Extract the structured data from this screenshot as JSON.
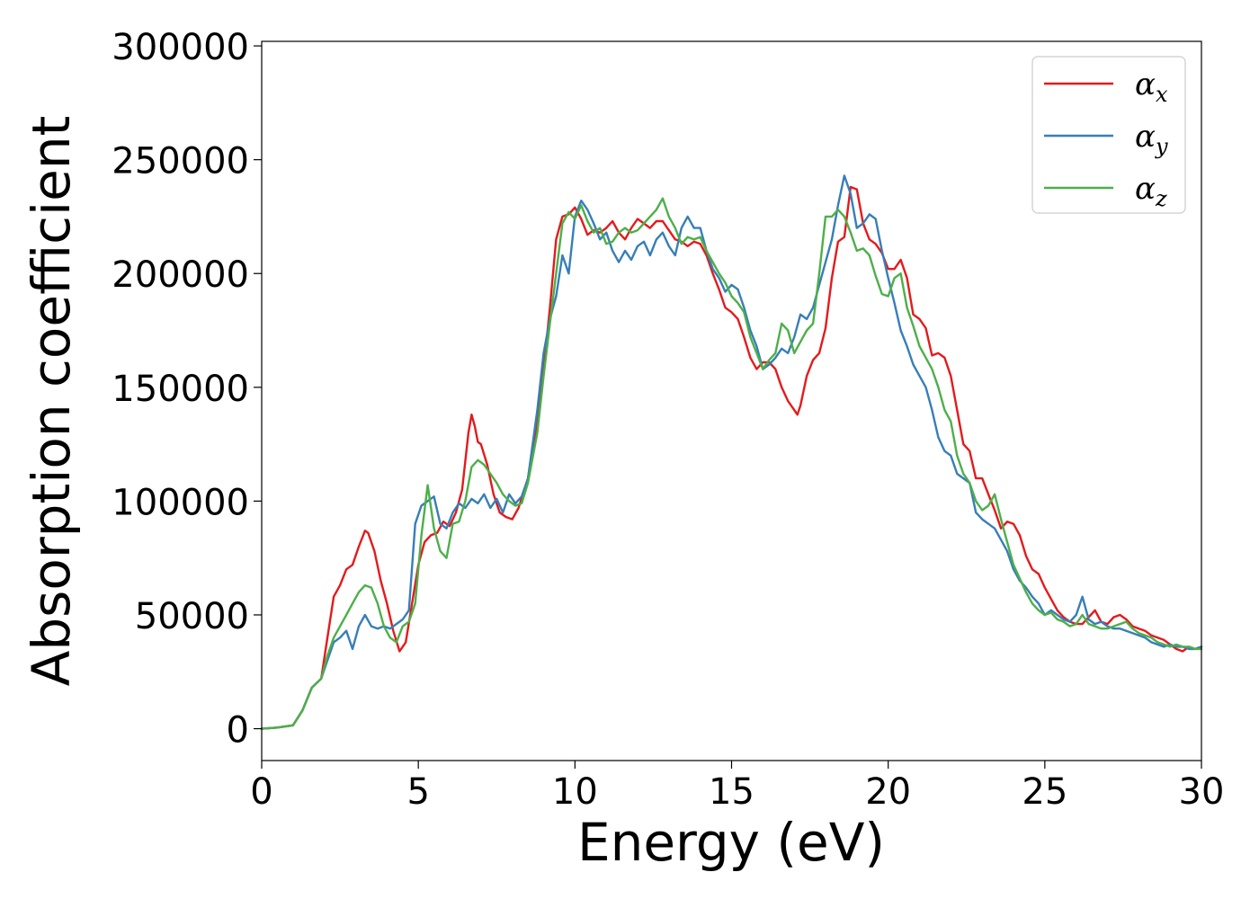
{
  "chart_data": {
    "type": "line",
    "xlabel": "Energy (eV)",
    "ylabel": "Absorption coefficient",
    "xlim": [
      0,
      30
    ],
    "ylim": [
      -14000,
      302000
    ],
    "xticks": [
      0,
      5,
      10,
      15,
      20,
      25,
      30
    ],
    "yticks": [
      0,
      50000,
      100000,
      150000,
      200000,
      250000,
      300000
    ],
    "grid": false,
    "legend_position": "top-right",
    "series": [
      {
        "name": "α",
        "subscript": "x",
        "color": "#e41a1c",
        "x": [
          0,
          0.5,
          1.0,
          1.3,
          1.6,
          1.9,
          2.1,
          2.3,
          2.5,
          2.7,
          2.9,
          3.1,
          3.3,
          3.4,
          3.6,
          3.8,
          4.0,
          4.2,
          4.4,
          4.6,
          4.8,
          5.0,
          5.2,
          5.4,
          5.6,
          5.8,
          6.0,
          6.2,
          6.4,
          6.6,
          6.7,
          6.8,
          6.9,
          7.0,
          7.2,
          7.4,
          7.6,
          7.8,
          8.0,
          8.2,
          8.5,
          8.8,
          9.0,
          9.2,
          9.4,
          9.6,
          9.8,
          10.0,
          10.2,
          10.4,
          10.6,
          10.8,
          11.0,
          11.2,
          11.4,
          11.6,
          11.8,
          12.0,
          12.2,
          12.4,
          12.6,
          12.8,
          13.0,
          13.2,
          13.4,
          13.6,
          13.8,
          14.0,
          14.2,
          14.4,
          14.6,
          14.8,
          15.0,
          15.2,
          15.4,
          15.6,
          15.8,
          16.0,
          16.2,
          16.4,
          16.6,
          16.8,
          17.0,
          17.1,
          17.2,
          17.4,
          17.6,
          17.8,
          18.0,
          18.2,
          18.4,
          18.6,
          18.8,
          19.0,
          19.2,
          19.4,
          19.6,
          19.8,
          20.0,
          20.2,
          20.4,
          20.6,
          20.8,
          21.0,
          21.2,
          21.4,
          21.6,
          21.8,
          22.0,
          22.2,
          22.4,
          22.6,
          22.8,
          23.0,
          23.2,
          23.4,
          23.6,
          23.8,
          24.0,
          24.2,
          24.4,
          24.6,
          24.8,
          25.0,
          25.2,
          25.4,
          25.6,
          25.8,
          26.0,
          26.2,
          26.4,
          26.6,
          26.8,
          27.0,
          27.2,
          27.4,
          27.6,
          27.8,
          28.0,
          28.2,
          28.4,
          28.6,
          28.8,
          29.0,
          29.2,
          29.4,
          29.6,
          29.8,
          30.0
        ],
        "values": [
          0,
          500,
          1500,
          8000,
          18000,
          22000,
          40000,
          58000,
          63000,
          70000,
          72000,
          80000,
          87000,
          86000,
          78000,
          65000,
          55000,
          43000,
          34000,
          38000,
          55000,
          72000,
          82000,
          85000,
          86000,
          91000,
          89000,
          95000,
          105000,
          130000,
          138000,
          133000,
          126000,
          125000,
          116000,
          103000,
          95000,
          93000,
          92000,
          97000,
          110000,
          135000,
          158000,
          185000,
          215000,
          225000,
          226000,
          229000,
          224000,
          217000,
          219000,
          218000,
          220000,
          223000,
          218000,
          215000,
          220000,
          224000,
          222000,
          220000,
          223000,
          223000,
          219000,
          215000,
          214000,
          212000,
          214000,
          213000,
          208000,
          200000,
          193000,
          185000,
          183000,
          180000,
          172000,
          163000,
          158000,
          161000,
          161000,
          158000,
          150000,
          144000,
          140000,
          138000,
          142000,
          155000,
          162000,
          165000,
          176000,
          198000,
          214000,
          216000,
          238000,
          237000,
          222000,
          215000,
          213000,
          209000,
          202000,
          202000,
          206000,
          198000,
          182000,
          180000,
          176000,
          164000,
          165000,
          163000,
          155000,
          140000,
          125000,
          122000,
          110000,
          110000,
          103000,
          96000,
          88000,
          91000,
          90000,
          85000,
          76000,
          70000,
          68000,
          62000,
          57000,
          52000,
          49000,
          47000,
          46000,
          46000,
          49000,
          52000,
          47000,
          46000,
          49000,
          50000,
          48000,
          45000,
          44000,
          43000,
          41000,
          40000,
          39000,
          37000,
          35000,
          34000,
          36000,
          35000,
          36000
        ]
      },
      {
        "name": "α",
        "subscript": "y",
        "color": "#377eb8",
        "x": [
          0,
          0.5,
          1.0,
          1.3,
          1.6,
          1.9,
          2.1,
          2.3,
          2.5,
          2.7,
          2.9,
          3.1,
          3.3,
          3.5,
          3.7,
          3.9,
          4.1,
          4.3,
          4.5,
          4.7,
          4.9,
          5.1,
          5.3,
          5.5,
          5.7,
          5.9,
          6.1,
          6.3,
          6.5,
          6.7,
          6.9,
          7.1,
          7.3,
          7.5,
          7.7,
          7.9,
          8.1,
          8.3,
          8.5,
          8.8,
          9.0,
          9.2,
          9.4,
          9.6,
          9.8,
          10.0,
          10.2,
          10.4,
          10.6,
          10.8,
          11.0,
          11.2,
          11.4,
          11.6,
          11.8,
          12.0,
          12.2,
          12.4,
          12.6,
          12.8,
          13.0,
          13.2,
          13.4,
          13.6,
          13.8,
          14.0,
          14.2,
          14.4,
          14.6,
          14.8,
          15.0,
          15.2,
          15.4,
          15.6,
          15.8,
          16.0,
          16.2,
          16.4,
          16.6,
          16.8,
          17.0,
          17.2,
          17.4,
          17.6,
          17.8,
          18.0,
          18.2,
          18.4,
          18.6,
          18.8,
          19.0,
          19.2,
          19.4,
          19.6,
          19.8,
          20.0,
          20.2,
          20.4,
          20.6,
          20.8,
          21.0,
          21.2,
          21.4,
          21.6,
          21.8,
          22.0,
          22.2,
          22.4,
          22.6,
          22.8,
          23.0,
          23.2,
          23.4,
          23.6,
          23.8,
          24.0,
          24.2,
          24.4,
          24.6,
          24.8,
          25.0,
          25.2,
          25.4,
          25.6,
          25.8,
          26.0,
          26.2,
          26.4,
          26.6,
          26.8,
          27.0,
          27.2,
          27.4,
          27.6,
          27.8,
          28.0,
          28.2,
          28.4,
          28.6,
          28.8,
          29.0,
          29.2,
          29.4,
          29.6,
          29.8,
          30.0
        ],
        "values": [
          0,
          500,
          1500,
          8000,
          18000,
          22000,
          30000,
          38000,
          40000,
          43000,
          35000,
          45000,
          50000,
          45000,
          44000,
          45000,
          44000,
          46000,
          48000,
          52000,
          90000,
          98000,
          100000,
          102000,
          90000,
          88000,
          95000,
          99000,
          97000,
          101000,
          99000,
          103000,
          97000,
          101000,
          95000,
          103000,
          99000,
          102000,
          110000,
          140000,
          165000,
          180000,
          190000,
          208000,
          200000,
          225000,
          232000,
          228000,
          222000,
          215000,
          218000,
          210000,
          205000,
          210000,
          206000,
          212000,
          214000,
          208000,
          215000,
          218000,
          212000,
          208000,
          220000,
          225000,
          220000,
          220000,
          210000,
          202000,
          198000,
          192000,
          195000,
          193000,
          185000,
          175000,
          168000,
          158000,
          160000,
          163000,
          167000,
          165000,
          172000,
          182000,
          180000,
          185000,
          195000,
          205000,
          215000,
          230000,
          243000,
          235000,
          220000,
          222000,
          226000,
          224000,
          210000,
          198000,
          187000,
          175000,
          168000,
          160000,
          155000,
          150000,
          140000,
          128000,
          122000,
          120000,
          112000,
          110000,
          108000,
          95000,
          92000,
          90000,
          88000,
          83000,
          78000,
          70000,
          65000,
          62000,
          58000,
          55000,
          50000,
          52000,
          50000,
          48000,
          47000,
          50000,
          58000,
          48000,
          46000,
          47000,
          45000,
          44000,
          44000,
          43000,
          42000,
          41000,
          40000,
          38000,
          37000,
          36000,
          37000,
          36000,
          36000,
          35000,
          35000,
          36000
        ]
      },
      {
        "name": "α",
        "subscript": "z",
        "color": "#4daf4a",
        "x": [
          0,
          0.5,
          1.0,
          1.3,
          1.6,
          1.9,
          2.1,
          2.3,
          2.5,
          2.7,
          2.9,
          3.1,
          3.3,
          3.5,
          3.7,
          3.9,
          4.1,
          4.3,
          4.5,
          4.7,
          4.9,
          5.1,
          5.3,
          5.5,
          5.7,
          5.9,
          6.1,
          6.3,
          6.5,
          6.7,
          6.9,
          7.1,
          7.3,
          7.5,
          7.7,
          7.9,
          8.1,
          8.3,
          8.5,
          8.8,
          9.0,
          9.2,
          9.4,
          9.6,
          9.8,
          10.0,
          10.2,
          10.4,
          10.6,
          10.8,
          11.0,
          11.2,
          11.4,
          11.6,
          11.8,
          12.0,
          12.2,
          12.4,
          12.6,
          12.8,
          13.0,
          13.2,
          13.4,
          13.6,
          13.8,
          14.0,
          14.2,
          14.4,
          14.6,
          14.8,
          15.0,
          15.2,
          15.4,
          15.6,
          15.8,
          16.0,
          16.2,
          16.4,
          16.6,
          16.8,
          17.0,
          17.2,
          17.4,
          17.6,
          17.8,
          18.0,
          18.2,
          18.4,
          18.6,
          18.8,
          19.0,
          19.2,
          19.4,
          19.6,
          19.8,
          20.0,
          20.2,
          20.4,
          20.6,
          20.8,
          21.0,
          21.2,
          21.4,
          21.6,
          21.8,
          22.0,
          22.2,
          22.4,
          22.6,
          22.8,
          23.0,
          23.2,
          23.4,
          23.6,
          23.8,
          24.0,
          24.2,
          24.4,
          24.6,
          24.8,
          25.0,
          25.2,
          25.4,
          25.6,
          25.8,
          26.0,
          26.2,
          26.4,
          26.6,
          26.8,
          27.0,
          27.2,
          27.4,
          27.6,
          27.8,
          28.0,
          28.2,
          28.4,
          28.6,
          28.8,
          29.0,
          29.2,
          29.4,
          29.6,
          29.8,
          30.0
        ],
        "values": [
          0,
          500,
          1500,
          8000,
          18000,
          22000,
          32000,
          40000,
          45000,
          50000,
          55000,
          60000,
          63000,
          62000,
          55000,
          45000,
          40000,
          38000,
          45000,
          47000,
          55000,
          85000,
          107000,
          88000,
          78000,
          75000,
          90000,
          91000,
          100000,
          115000,
          118000,
          116000,
          112000,
          108000,
          103000,
          100000,
          98000,
          99000,
          108000,
          130000,
          155000,
          178000,
          200000,
          222000,
          227000,
          224000,
          230000,
          223000,
          218000,
          220000,
          213000,
          214000,
          218000,
          220000,
          218000,
          219000,
          222000,
          225000,
          228000,
          233000,
          225000,
          220000,
          213000,
          216000,
          215000,
          216000,
          210000,
          205000,
          200000,
          196000,
          190000,
          187000,
          183000,
          172000,
          165000,
          158000,
          162000,
          165000,
          178000,
          175000,
          165000,
          170000,
          175000,
          178000,
          200000,
          225000,
          225000,
          228000,
          225000,
          218000,
          210000,
          211000,
          208000,
          199000,
          191000,
          190000,
          198000,
          200000,
          185000,
          177000,
          168000,
          163000,
          158000,
          150000,
          140000,
          135000,
          120000,
          112000,
          108000,
          100000,
          96000,
          98000,
          103000,
          92000,
          82000,
          72000,
          66000,
          60000,
          55000,
          52000,
          50000,
          51000,
          48000,
          47000,
          45000,
          46000,
          50000,
          46000,
          45000,
          44000,
          44000,
          45000,
          46000,
          47000,
          44000,
          42000,
          41000,
          40000,
          38000,
          37000,
          36000,
          37000,
          36000,
          36000,
          35000,
          35000
        ]
      }
    ]
  }
}
